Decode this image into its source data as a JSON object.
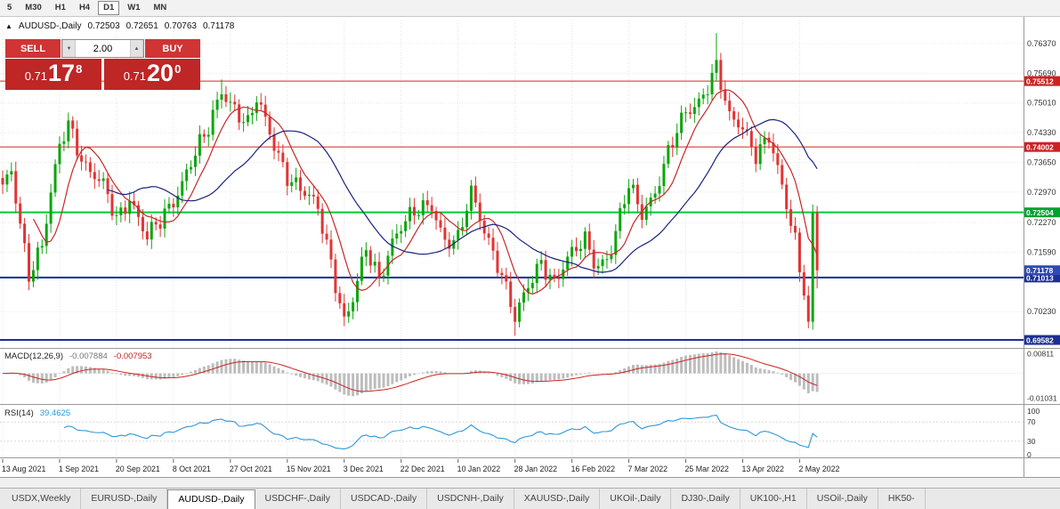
{
  "icons": {
    "collapse": "▲",
    "up": "▲",
    "down": "▼"
  },
  "toolbar": {
    "timeframes": [
      {
        "label": "5",
        "active": false
      },
      {
        "label": "M30",
        "active": false
      },
      {
        "label": "H1",
        "active": false
      },
      {
        "label": "H4",
        "active": false
      },
      {
        "label": "D1",
        "active": true
      },
      {
        "label": "W1",
        "active": false
      },
      {
        "label": "MN",
        "active": false
      }
    ]
  },
  "header": {
    "title": "AUDUSD-,Daily",
    "open": "0.72503",
    "high": "0.72651",
    "low": "0.70763",
    "close": "0.71178"
  },
  "trade_panel": {
    "sell_label": "SELL",
    "buy_label": "BUY",
    "volume": "2.00",
    "sell_price": {
      "big": "0.71",
      "huge": "17",
      "sup": "8"
    },
    "buy_price": {
      "big": "0.71",
      "huge": "20",
      "sup": "0"
    }
  },
  "macd": {
    "label": "MACD(12,26,9)",
    "v1": "-0.007884",
    "v2": "-0.007953",
    "axis_top": "0.00811",
    "axis_bottom": "-0.01031"
  },
  "rsi": {
    "label": "RSI(14)",
    "value": "39.4625",
    "levels": [
      "100",
      "70",
      "30",
      "0"
    ]
  },
  "price_axis": {
    "ticks": [
      "0.76370",
      "0.75690",
      "0.75010",
      "0.74330",
      "0.73650",
      "0.72970",
      "0.72270",
      "0.71590",
      "0.70230"
    ]
  },
  "x_axis": {
    "step": 13,
    "labels": [
      "13 Aug 2021",
      "1 Sep 2021",
      "20 Sep 2021",
      "8 Oct 2021",
      "27 Oct 2021",
      "15 Nov 2021",
      "3 Dec 2021",
      "22 Dec 2021",
      "10 Jan 2022",
      "28 Jan 2022",
      "16 Feb 2022",
      "7 Mar 2022",
      "25 Mar 2022",
      "13 Apr 2022",
      "2 May 2022"
    ],
    "tabs_note": ""
  },
  "tabs": [
    {
      "label": "USDX,Weekly",
      "active": false
    },
    {
      "label": "EURUSD-,Daily",
      "active": false
    },
    {
      "label": "AUDUSD-,Daily",
      "active": true
    },
    {
      "label": "USDCHF-,Daily",
      "active": false
    },
    {
      "label": "USDCAD-,Daily",
      "active": false
    },
    {
      "label": "USDCNH-,Daily",
      "active": false
    },
    {
      "label": "XAUUSD-,Daily",
      "active": false
    },
    {
      "label": "UKOil-,Daily",
      "active": false
    },
    {
      "label": "DJ30-,Daily",
      "active": false
    },
    {
      "label": "UK100-,H1",
      "active": false
    },
    {
      "label": "USOil-,Daily",
      "active": false
    },
    {
      "label": "HK50-",
      "active": false
    }
  ],
  "chart_data": {
    "type": "candlestick",
    "symbol": "AUDUSD",
    "timeframe": "Daily",
    "current_candle": {
      "open": 0.72503,
      "high": 0.72651,
      "low": 0.70763,
      "close": 0.71178
    },
    "price_range": [
      0.6944,
      0.769
    ],
    "candle_count": 187,
    "colors": {
      "up": "#0da50d",
      "down": "#e23434"
    },
    "levels": [
      {
        "price": 0.75512,
        "label": "0.75512",
        "color": "#dd2222",
        "width": 1,
        "badge": "#cc2222"
      },
      {
        "price": 0.74002,
        "label": "0.74002",
        "color": "#dd2222",
        "width": 1,
        "badge": "#cc2222"
      },
      {
        "price": 0.72504,
        "label": "0.72504",
        "color": "#00cc33",
        "width": 2,
        "badge": "#00a32e"
      },
      {
        "price": 0.71013,
        "label": "0.71013",
        "color": "#1c2f96",
        "width": 2,
        "badge": "#1c2f96"
      },
      {
        "price": 0.69582,
        "label": "0.69582",
        "color": "#1c2f96",
        "width": 2,
        "badge": "#1c2f96"
      }
    ],
    "current_badge": {
      "price": 0.71178,
      "label": "0.71178",
      "color": "#2f49b5"
    },
    "ma": [
      {
        "period": 8,
        "color": "#c62828"
      },
      {
        "period": 25,
        "color": "#1a237e"
      }
    ],
    "macd_params": [
      12,
      26,
      9
    ],
    "rsi_period": 14,
    "macd_scale": [
      -0.012,
      0.0095
    ],
    "noise": {
      "amp": [
        0.0015,
        0.001,
        0.0006
      ],
      "freq": [
        1.71,
        0.53,
        3.93
      ],
      "phase": [
        0,
        2,
        1
      ],
      "end": 183
    },
    "anchors": [
      [
        0,
        0.73
      ],
      [
        2,
        0.7345
      ],
      [
        6,
        0.7115
      ],
      [
        9,
        0.717
      ],
      [
        13,
        0.74
      ],
      [
        15,
        0.746
      ],
      [
        19,
        0.7355
      ],
      [
        23,
        0.7305
      ],
      [
        26,
        0.7235
      ],
      [
        29,
        0.729
      ],
      [
        33,
        0.719
      ],
      [
        36,
        0.7225
      ],
      [
        39,
        0.728
      ],
      [
        43,
        0.737
      ],
      [
        47,
        0.7435
      ],
      [
        50,
        0.753
      ],
      [
        53,
        0.7495
      ],
      [
        56,
        0.745
      ],
      [
        58,
        0.7505
      ],
      [
        61,
        0.743
      ],
      [
        65,
        0.734
      ],
      [
        69,
        0.729
      ],
      [
        72,
        0.7255
      ],
      [
        75,
        0.714
      ],
      [
        78,
        0.7005
      ],
      [
        80,
        0.705
      ],
      [
        83,
        0.716
      ],
      [
        86,
        0.71
      ],
      [
        89,
        0.719
      ],
      [
        91,
        0.722
      ],
      [
        95,
        0.725
      ],
      [
        98,
        0.727
      ],
      [
        101,
        0.719
      ],
      [
        104,
        0.7185
      ],
      [
        107,
        0.729
      ],
      [
        110,
        0.7215
      ],
      [
        113,
        0.714
      ],
      [
        116,
        0.704
      ],
      [
        117,
        0.6998
      ],
      [
        120,
        0.708
      ],
      [
        123,
        0.7145
      ],
      [
        126,
        0.709
      ],
      [
        130,
        0.715
      ],
      [
        133,
        0.719
      ],
      [
        136,
        0.713
      ],
      [
        139,
        0.716
      ],
      [
        143,
        0.731
      ],
      [
        146,
        0.7255
      ],
      [
        149,
        0.73
      ],
      [
        152,
        0.738
      ],
      [
        156,
        0.748
      ],
      [
        159,
        0.751
      ],
      [
        163,
        0.758
      ],
      [
        166,
        0.746
      ],
      [
        169,
        0.745
      ],
      [
        172,
        0.739
      ],
      [
        175,
        0.742
      ],
      [
        178,
        0.73
      ],
      [
        181,
        0.719
      ],
      [
        183,
        0.706
      ],
      [
        184,
        0.7
      ],
      [
        185,
        0.725
      ],
      [
        186,
        0.71178
      ]
    ],
    "overrides": {
      "50": {
        "h": 0.7555
      },
      "117": {
        "l": 0.6968
      },
      "163": {
        "h": 0.7661
      },
      "184": {
        "l": 0.6985
      },
      "186": {
        "o": 0.72503,
        "h": 0.72651,
        "l": 0.70763,
        "c": 0.71178
      }
    }
  }
}
